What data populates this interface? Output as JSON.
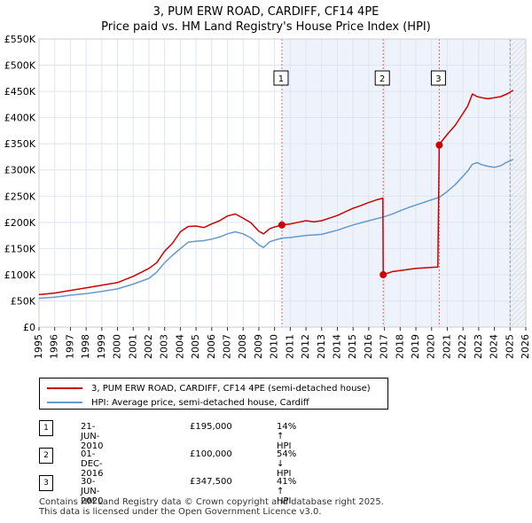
{
  "header": {
    "title_line1": "3, PUM ERW ROAD, CARDIFF, CF14 4PE",
    "title_line2": "Price paid vs. HM Land Registry's House Price Index (HPI)"
  },
  "chart_data": {
    "type": "line",
    "title": "3, PUM ERW ROAD, CARDIFF, CF14 4PE - Price paid vs. HM Land Registry's House Price Index (HPI)",
    "xlabel": "",
    "ylabel": "",
    "xlim": [
      1995,
      2026
    ],
    "ylim": [
      0,
      550000
    ],
    "y_ticks": [
      0,
      50000,
      100000,
      150000,
      200000,
      250000,
      300000,
      350000,
      400000,
      450000,
      500000,
      550000
    ],
    "y_tick_labels": [
      "£0",
      "£50K",
      "£100K",
      "£150K",
      "£200K",
      "£250K",
      "£300K",
      "£350K",
      "£400K",
      "£450K",
      "£500K",
      "£550K"
    ],
    "x_ticks": [
      1995,
      1996,
      1997,
      1998,
      1999,
      2000,
      2001,
      2002,
      2003,
      2004,
      2005,
      2006,
      2007,
      2008,
      2009,
      2010,
      2011,
      2012,
      2013,
      2014,
      2015,
      2016,
      2017,
      2018,
      2019,
      2020,
      2021,
      2022,
      2023,
      2024,
      2025,
      2026
    ],
    "x_tick_labels": [
      "1995",
      "1996",
      "1997",
      "1998",
      "1999",
      "2000",
      "2001",
      "2002",
      "2003",
      "2004",
      "2005",
      "2006",
      "2007",
      "2008",
      "2009",
      "2010",
      "2011",
      "2012",
      "2013",
      "2014",
      "2015",
      "2016",
      "2017",
      "2018",
      "2019",
      "2020",
      "2021",
      "2022",
      "2023",
      "2024",
      "2025",
      "2026"
    ],
    "grid": true,
    "series": [
      {
        "name": "3, PUM ERW ROAD, CARDIFF, CF14 4PE (semi-detached house)",
        "color": "#cc0000",
        "x": [
          1995.0,
          1996.0,
          1997.0,
          1998.0,
          1999.0,
          2000.0,
          2001.0,
          2002.0,
          2002.5,
          2003.0,
          2003.5,
          2004.0,
          2004.5,
          2005.0,
          2005.5,
          2006.0,
          2006.5,
          2007.0,
          2007.5,
          2008.0,
          2008.5,
          2009.0,
          2009.3,
          2009.7,
          2010.0,
          2010.47,
          2011.0,
          2011.5,
          2012.0,
          2012.5,
          2013.0,
          2013.5,
          2014.0,
          2014.5,
          2015.0,
          2015.5,
          2016.0,
          2016.5,
          2016.9,
          2016.92,
          2017.5,
          2018.0,
          2018.5,
          2019.0,
          2019.5,
          2020.0,
          2020.4,
          2020.49,
          2020.6,
          2021.0,
          2021.5,
          2022.0,
          2022.3,
          2022.6,
          2022.9,
          2023.2,
          2023.6,
          2024.0,
          2024.4,
          2024.8,
          2025.2
        ],
        "values": [
          62000,
          65000,
          70000,
          75000,
          80000,
          85000,
          97000,
          112000,
          123000,
          145000,
          160000,
          182000,
          192000,
          193000,
          190000,
          197000,
          203000,
          212000,
          216000,
          208000,
          199000,
          183000,
          178000,
          188000,
          191000,
          195000,
          197000,
          200000,
          203000,
          201000,
          203000,
          208000,
          213000,
          220000,
          227000,
          232000,
          238000,
          243000,
          246000,
          100000,
          106000,
          108000,
          110000,
          112000,
          113000,
          114000,
          114500,
          347500,
          353000,
          368000,
          385000,
          408000,
          422000,
          445000,
          440000,
          438000,
          436000,
          438000,
          440000,
          445000,
          452000
        ]
      },
      {
        "name": "HPI: Average price, semi-detached house, Cardiff",
        "color": "#6699cc",
        "x": [
          1995.0,
          1996.0,
          1997.0,
          1998.0,
          1999.0,
          2000.0,
          2001.0,
          2002.0,
          2002.5,
          2003.0,
          2003.5,
          2004.0,
          2004.5,
          2005.0,
          2005.5,
          2006.0,
          2006.5,
          2007.0,
          2007.5,
          2008.0,
          2008.5,
          2009.0,
          2009.3,
          2009.7,
          2010.0,
          2010.5,
          2011.0,
          2011.5,
          2012.0,
          2012.5,
          2013.0,
          2013.5,
          2014.0,
          2014.5,
          2015.0,
          2015.5,
          2016.0,
          2016.5,
          2016.92,
          2017.5,
          2018.0,
          2018.5,
          2019.0,
          2019.5,
          2020.0,
          2020.5,
          2021.0,
          2021.5,
          2022.0,
          2022.3,
          2022.6,
          2022.9,
          2023.2,
          2023.6,
          2024.0,
          2024.4,
          2024.8,
          2025.2
        ],
        "values": [
          55000,
          57000,
          61000,
          64000,
          68000,
          73000,
          82000,
          93000,
          105000,
          123000,
          137000,
          150000,
          162000,
          164000,
          165000,
          168000,
          172000,
          178000,
          182000,
          178000,
          170000,
          157000,
          152000,
          163000,
          166000,
          170000,
          171000,
          173000,
          175000,
          176000,
          177000,
          181000,
          185000,
          190000,
          195000,
          199000,
          203000,
          207000,
          210000,
          216000,
          222000,
          228000,
          233000,
          238000,
          243000,
          248000,
          259000,
          272000,
          288000,
          298000,
          311000,
          314000,
          310000,
          307000,
          305000,
          308000,
          315000,
          320000
        ]
      }
    ],
    "transactions": [
      {
        "label": "1",
        "x": 2010.47,
        "value": 195000,
        "date": "21-JUN-2010",
        "price": "£195,000",
        "hpi_change": "14% ↑ HPI"
      },
      {
        "label": "2",
        "x": 2016.92,
        "value": 100000,
        "date": "01-DEC-2016",
        "price": "£100,000",
        "hpi_change": "54% ↓ HPI"
      },
      {
        "label": "3",
        "x": 2020.49,
        "value": 347500,
        "date": "30-JUN-2020",
        "price": "£347,500",
        "hpi_change": "41% ↑ HPI"
      }
    ],
    "forecast_from": 2025.0,
    "colors": {
      "background": "#ffffff",
      "shade": "#eef3fb",
      "grid": "#ffffff",
      "vline": "#e06666",
      "forecast": "#999999"
    }
  },
  "legend": {
    "price_label": "3, PUM ERW ROAD, CARDIFF, CF14 4PE (semi-detached house)",
    "hpi_label": "HPI: Average price, semi-detached house, Cardiff"
  },
  "footer": {
    "line1": "Contains HM Land Registry data © Crown copyright and database right 2025.",
    "line2": "This data is licensed under the Open Government Licence v3.0."
  }
}
